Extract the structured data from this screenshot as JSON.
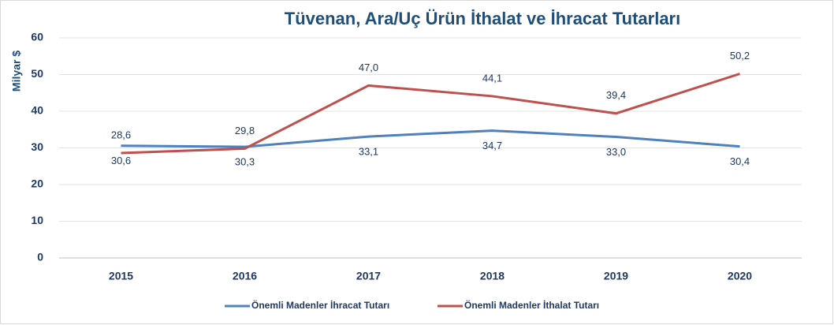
{
  "chart_data": {
    "type": "line",
    "title": "Tüvenan, Ara/Uç Ürün İthalat ve İhracat Tutarları",
    "y_label": "Milyar $",
    "categories": [
      "2015",
      "2016",
      "2017",
      "2018",
      "2019",
      "2020"
    ],
    "series": [
      {
        "name": "Önemli Madenler İhracat Tutarı",
        "color": "#4f81bd",
        "values": [
          30.6,
          30.3,
          33.1,
          34.7,
          33.0,
          30.4
        ],
        "value_labels": [
          "30,6",
          "30,3",
          "33,1",
          "34,7",
          "33,0",
          "30,4"
        ]
      },
      {
        "name": "Önemli Madenler İthalat Tutarı",
        "color": "#c0504d",
        "values": [
          28.6,
          29.8,
          47.0,
          44.1,
          39.4,
          50.2
        ],
        "value_labels": [
          "28,6",
          "29,8",
          "47,0",
          "44,1",
          "39,4",
          "50,2"
        ]
      }
    ],
    "ylim": [
      0,
      60
    ],
    "yticks": [
      0,
      10,
      20,
      30,
      40,
      50,
      60
    ],
    "grid": true,
    "legend": "bottom"
  }
}
